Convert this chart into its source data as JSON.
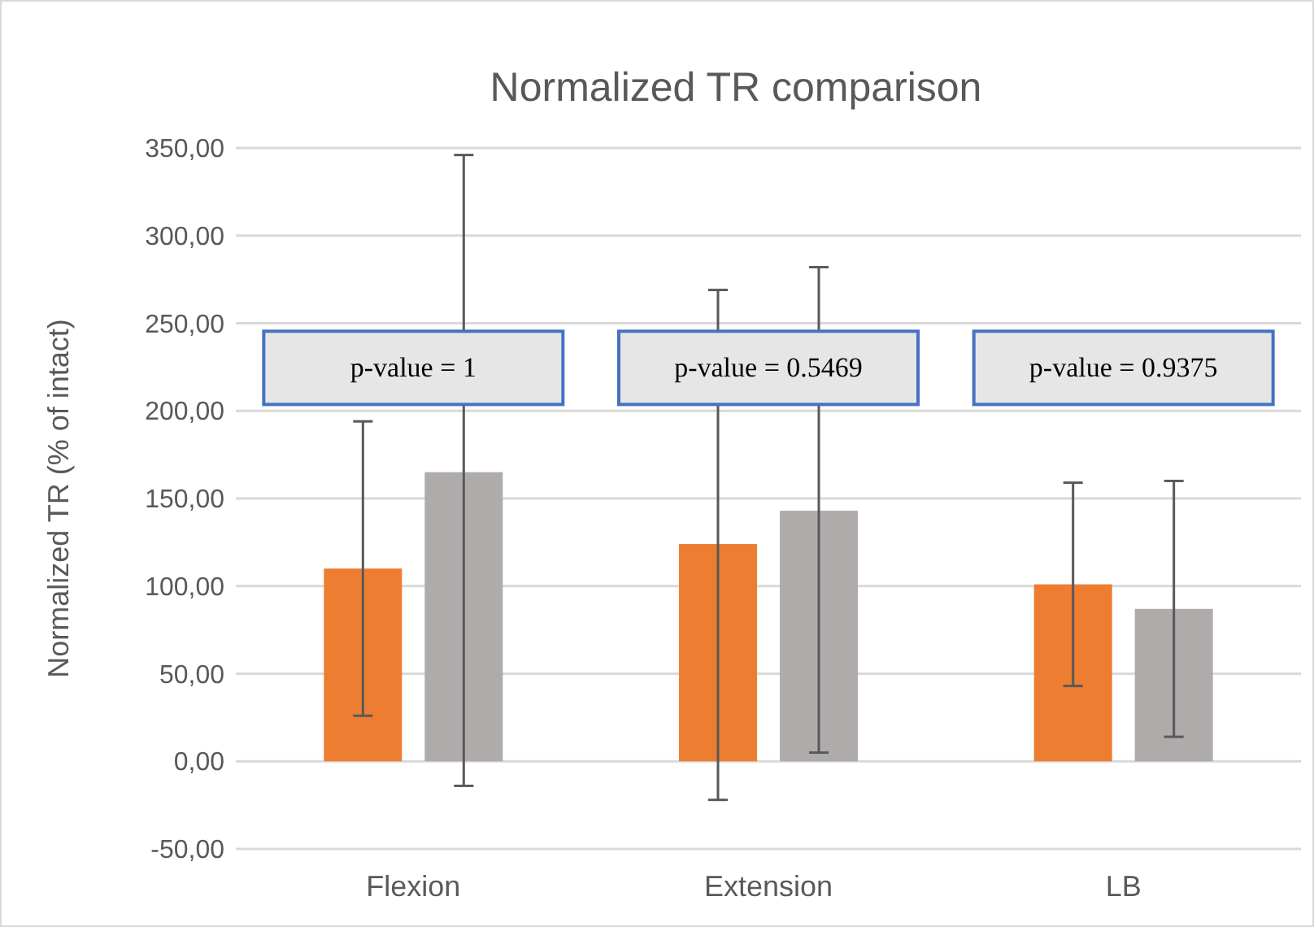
{
  "chart_data": {
    "type": "bar",
    "title": "Normalized TR comparison",
    "ylabel": "Normalized TR (% of intact)",
    "categories": [
      "Flexion",
      "Extension",
      "LB"
    ],
    "series": [
      {
        "color": "#ed7d31",
        "values": [
          110,
          124,
          101
        ],
        "errors": [
          [
            26,
            194
          ],
          [
            -22,
            269
          ],
          [
            43,
            159
          ]
        ]
      },
      {
        "color": "#afabab",
        "values": [
          165,
          143,
          87
        ],
        "errors": [
          [
            -14,
            346
          ],
          [
            5,
            282
          ],
          [
            14,
            160
          ]
        ]
      }
    ],
    "ylim": [
      -50,
      350
    ],
    "yticks": [
      {
        "value": -50,
        "label": "-50,00"
      },
      {
        "value": 0,
        "label": "0,00"
      },
      {
        "value": 50,
        "label": "50,00"
      },
      {
        "value": 100,
        "label": "100,00"
      },
      {
        "value": 150,
        "label": "150,00"
      },
      {
        "value": 200,
        "label": "200,00"
      },
      {
        "value": 250,
        "label": "250,00"
      },
      {
        "value": 300,
        "label": "300,00"
      },
      {
        "value": 350,
        "label": "350,00"
      }
    ],
    "grid": "y",
    "annotations": [
      "p-value = 1",
      "p-value = 0.5469",
      "p-value = 0.9375"
    ]
  }
}
